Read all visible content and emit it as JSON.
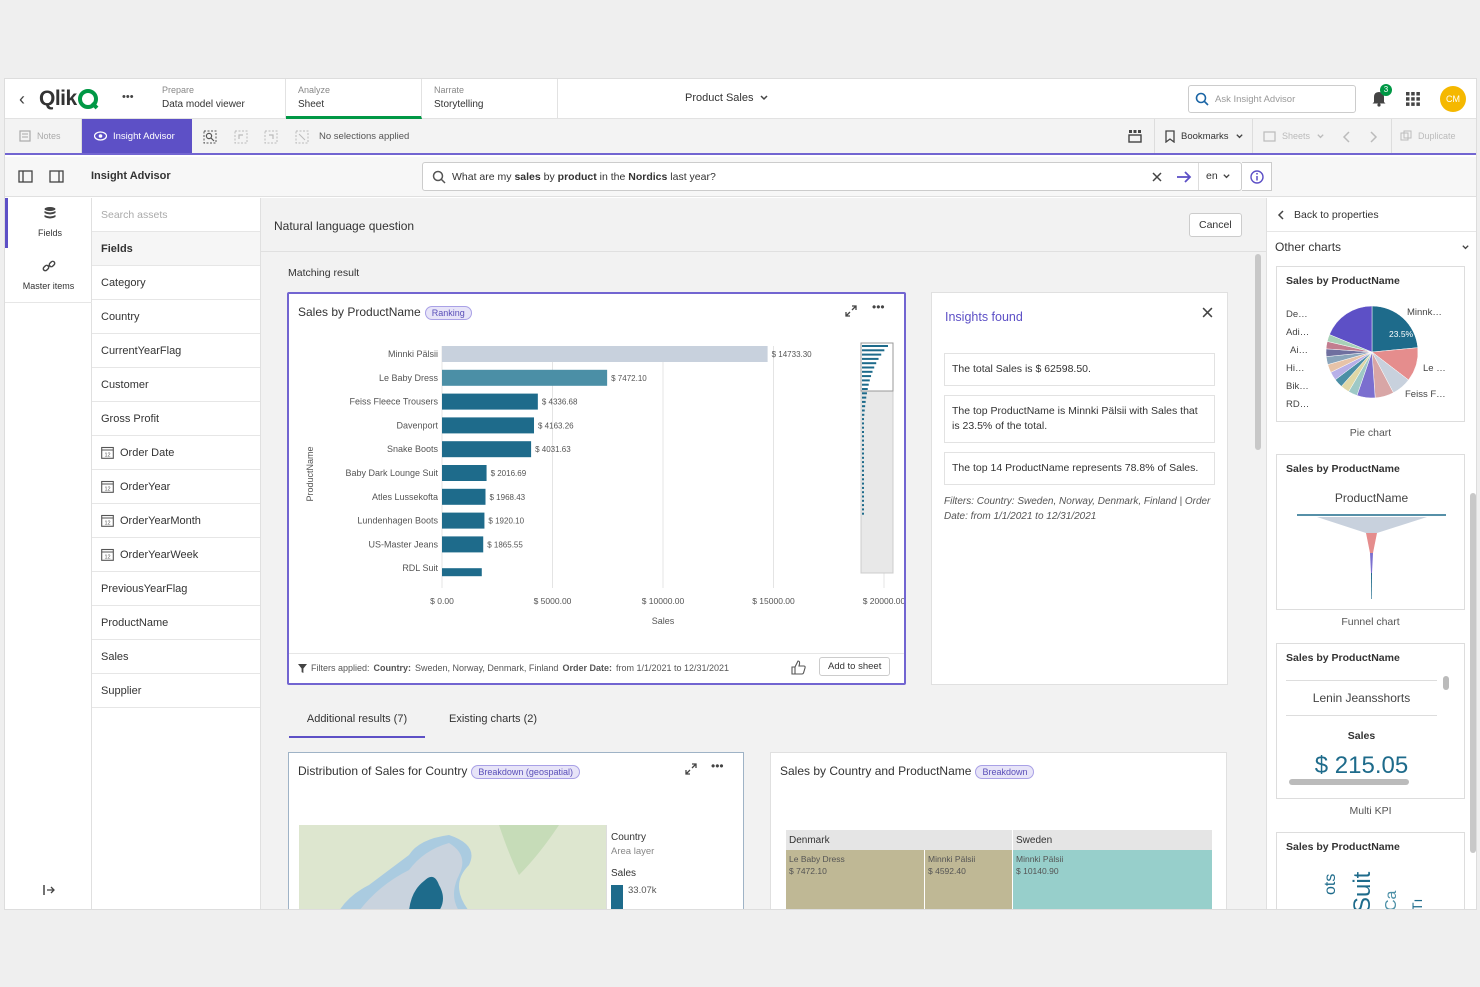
{
  "topbar": {
    "back_label": "‹",
    "logo_text": "Qlik",
    "more": "•••",
    "tabs": [
      {
        "small": "Prepare",
        "label": "Data model viewer"
      },
      {
        "small": "Analyze",
        "label": "Sheet"
      },
      {
        "small": "Narrate",
        "label": "Storytelling"
      }
    ],
    "app_title": "Product Sales",
    "ask_placeholder": "Ask Insight Advisor",
    "notification_count": "3",
    "avatar": "CM"
  },
  "toolbar": {
    "notes": "Notes",
    "insight_advisor": "Insight Advisor",
    "no_selections": "No selections applied",
    "bookmarks": "Bookmarks",
    "sheets": "Sheets",
    "duplicate": "Duplicate"
  },
  "iabar": {
    "title": "Insight Advisor",
    "question_parts": [
      "What are my ",
      "sales",
      " by ",
      "product",
      " in the ",
      "Nordics",
      " last year?"
    ],
    "lang": "en"
  },
  "leftrail": {
    "fields": "Fields",
    "master_items": "Master items"
  },
  "fieldlist": {
    "search_placeholder": "Search assets",
    "header": "Fields",
    "items": [
      {
        "label": "Category",
        "date": false
      },
      {
        "label": "Country",
        "date": false
      },
      {
        "label": "CurrentYearFlag",
        "date": false
      },
      {
        "label": "Customer",
        "date": false
      },
      {
        "label": "Gross Profit",
        "date": false
      },
      {
        "label": "Order Date",
        "date": true
      },
      {
        "label": "OrderYear",
        "date": true
      },
      {
        "label": "OrderYearMonth",
        "date": true
      },
      {
        "label": "OrderYearWeek",
        "date": true
      },
      {
        "label": "PreviousYearFlag",
        "date": false
      },
      {
        "label": "ProductName",
        "date": false
      },
      {
        "label": "Sales",
        "date": false
      },
      {
        "label": "Supplier",
        "date": false
      }
    ]
  },
  "main": {
    "header": "Natural language question",
    "cancel": "Cancel",
    "matching_result": "Matching result",
    "chart_title": "Sales by ProductName",
    "chart_badge": "Ranking",
    "filters_prefix": "Filters applied:",
    "filters_country_label": "Country:",
    "filters_country": "Sweden, Norway, Denmark, Finland",
    "filters_date_label": "Order Date:",
    "filters_date": "from 1/1/2021 to 12/31/2021",
    "add_to_sheet": "Add to sheet",
    "tabs": [
      "Additional results (7)",
      "Existing charts (2)"
    ],
    "card2_title": "Distribution of Sales for Country",
    "card2_badge": "Breakdown (geospatial)",
    "card2_legend": {
      "country": "Country",
      "area": "Area layer",
      "sales": "Sales",
      "value": "33.07k"
    },
    "card3_title": "Sales by Country and ProductName",
    "card3_badge": "Breakdown",
    "treemap": {
      "countries": [
        "Denmark",
        "Sweden"
      ],
      "cells": [
        {
          "name": "Le Baby Dress",
          "value": "$ 7472.10"
        },
        {
          "name": "Minnki Pälsii",
          "value": "$ 4592.40"
        },
        {
          "name": "Minnki Pälsii",
          "value": "$ 10140.90"
        }
      ]
    }
  },
  "chart_data": {
    "type": "bar",
    "title": "Sales by ProductName",
    "xlabel": "Sales",
    "ylabel": "ProductName",
    "categories": [
      "Minnki Pälsii",
      "Le Baby Dress",
      "Feiss Fleece Trousers",
      "Davenport",
      "Snake Boots",
      "Baby Dark Lounge Suit",
      "Atles Lussekofta",
      "Lundenhagen Boots",
      "US-Master Jeans",
      "RDL Suit"
    ],
    "values": [
      14733.3,
      7472.1,
      4336.68,
      4163.26,
      4031.63,
      2016.69,
      1968.43,
      1920.1,
      1865.55,
      1800
    ],
    "value_labels": [
      "$ 14733.30",
      "$ 7472.10",
      "$ 4336.68",
      "$ 4163.26",
      "$ 4031.63",
      "$ 2016.69",
      "$ 1968.43",
      "$ 1920.10",
      "$ 1865.55",
      ""
    ],
    "xticks": [
      "$ 0.00",
      "$ 5000.00",
      "$ 10000.00",
      "$ 15000.00",
      "$ 20000.00"
    ],
    "xlim": [
      0,
      20000
    ],
    "colors": {
      "selected": "#c8d1dd",
      "bar": "#1e6b8b",
      "bar_light": "#4b8fa6"
    }
  },
  "insights": {
    "title": "Insights found",
    "items": [
      "The total Sales is $ 62598.50.",
      "The top ProductName is Minnki Pälsii with Sales that is 23.5% of the total.",
      "The top 14 ProductName represents 78.8% of Sales."
    ],
    "filters_note": "Filters: Country: Sweden, Norway, Denmark, Finland | Order Date: from 1/1/2021 to 12/31/2021"
  },
  "rightpanel": {
    "back": "Back to properties",
    "other_charts": "Other charts",
    "thumbs": [
      {
        "title": "Sales by ProductName",
        "label": "Pie chart"
      },
      {
        "title": "Sales by ProductName",
        "label": "Funnel chart"
      },
      {
        "title": "Sales by ProductName",
        "label": "Multi KPI"
      },
      {
        "title": "Sales by ProductName",
        "label": ""
      }
    ],
    "pie_labels": [
      "De…",
      "Adi…",
      "Ai…",
      "Hi…",
      "Bik…",
      "RD…",
      "Minnk…",
      "Le …",
      "Feiss F…"
    ],
    "pie_pct": "23.5%",
    "funnel_title": "ProductName",
    "kpi_name": "Lenin Jeansshorts",
    "kpi_label": "Sales",
    "kpi_value": "$ 215.05",
    "wordcloud": [
      "ots",
      "Suit",
      "Ca",
      "Tı"
    ]
  }
}
